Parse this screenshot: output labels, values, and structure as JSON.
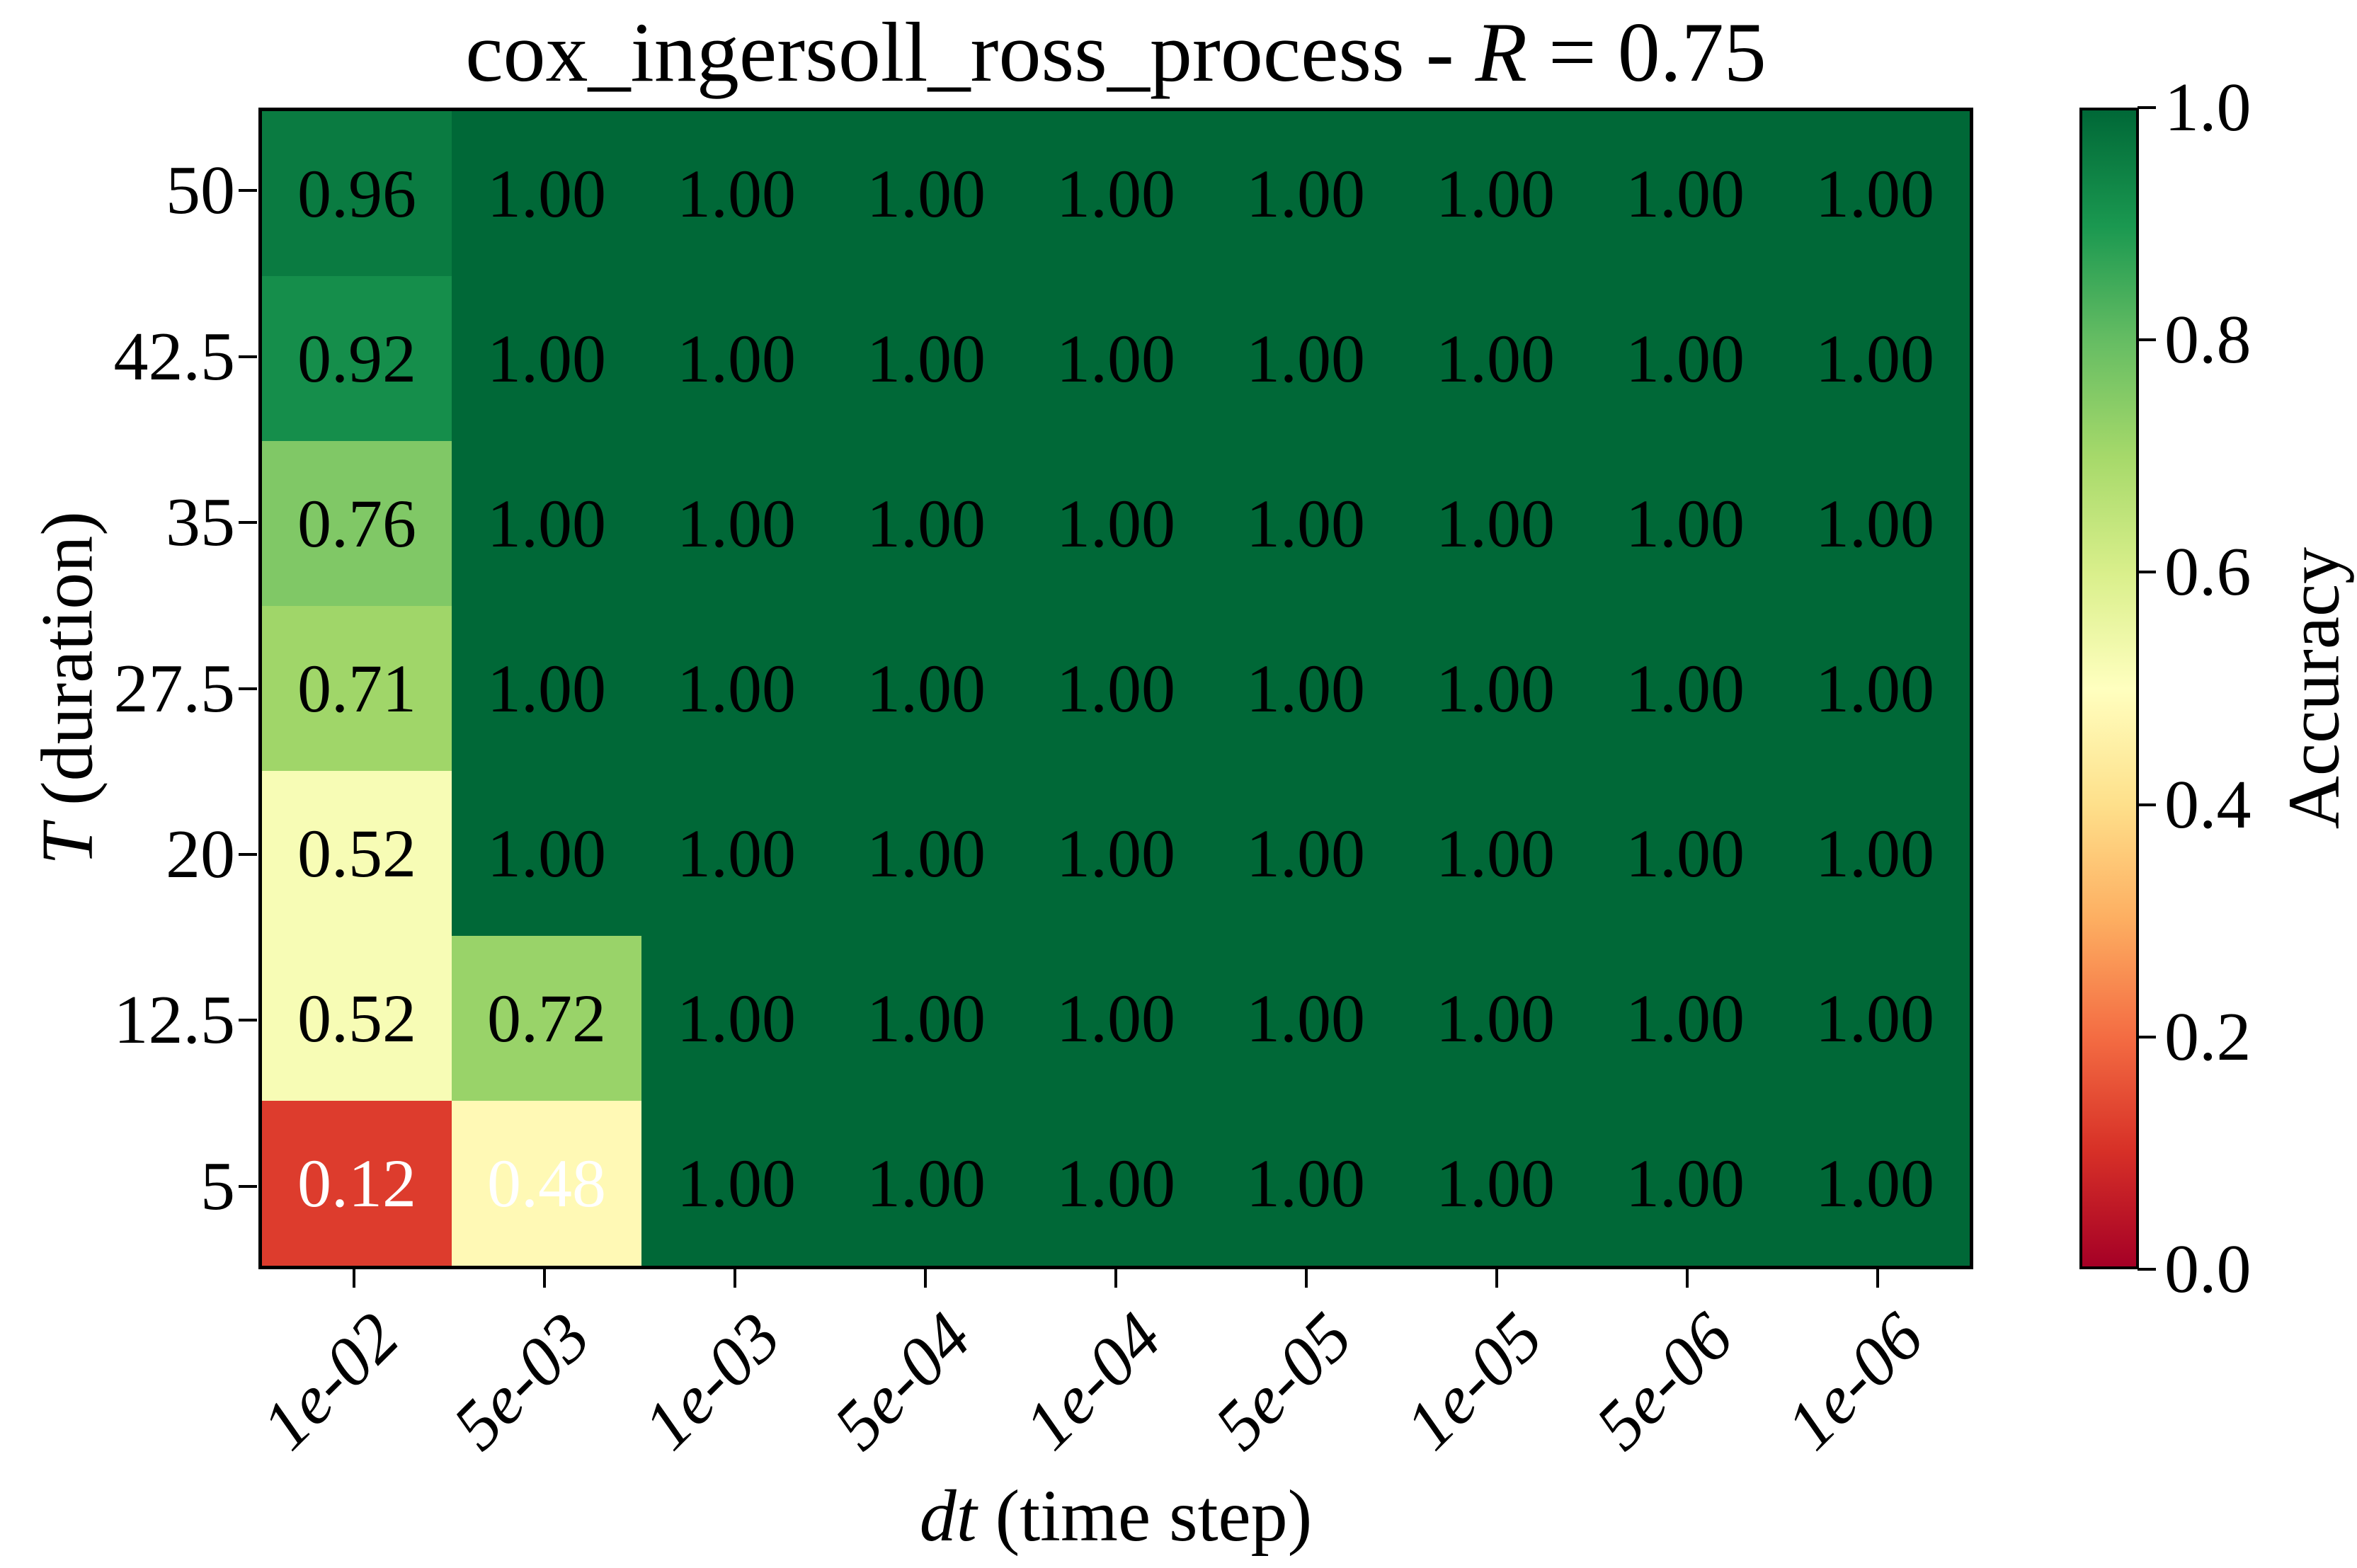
{
  "title": {
    "text_before_r": "cox_ingersoll_ross_process - ",
    "r_var": "R",
    "text_after_r": " = 0.75",
    "full": "cox_ingersoll_ross_process - R = 0.75"
  },
  "axes": {
    "x": {
      "label_var": "dt",
      "label_rest": " (time step)",
      "tick_labels": [
        "1e-02",
        "5e-03",
        "1e-03",
        "5e-04",
        "1e-04",
        "5e-05",
        "1e-05",
        "5e-06",
        "1e-06"
      ],
      "tick_rotation_deg": 45
    },
    "y": {
      "label_var": "T",
      "label_rest": " (duration)",
      "tick_labels": [
        "50",
        "42.5",
        "35",
        "27.5",
        "20",
        "12.5",
        "5"
      ]
    }
  },
  "colorbar": {
    "label": "Accuracy",
    "min": 0.0,
    "max": 1.0,
    "ticks": [
      {
        "value": 0.0,
        "label": "0.0"
      },
      {
        "value": 0.2,
        "label": "0.2"
      },
      {
        "value": 0.4,
        "label": "0.4"
      },
      {
        "value": 0.6,
        "label": "0.6"
      },
      {
        "value": 0.8,
        "label": "0.8"
      },
      {
        "value": 1.0,
        "label": "1.0"
      }
    ]
  },
  "chart_data": {
    "type": "heatmap",
    "title": "cox_ingersoll_ross_process - R = 0.75",
    "xlabel": "dt (time step)",
    "ylabel": "T (duration)",
    "x_categories": [
      "1e-02",
      "5e-03",
      "1e-03",
      "5e-04",
      "1e-04",
      "5e-05",
      "1e-05",
      "5e-06",
      "1e-06"
    ],
    "y_categories": [
      "50",
      "42.5",
      "35",
      "27.5",
      "20",
      "12.5",
      "5"
    ],
    "values": [
      [
        0.96,
        1.0,
        1.0,
        1.0,
        1.0,
        1.0,
        1.0,
        1.0,
        1.0
      ],
      [
        0.92,
        1.0,
        1.0,
        1.0,
        1.0,
        1.0,
        1.0,
        1.0,
        1.0
      ],
      [
        0.76,
        1.0,
        1.0,
        1.0,
        1.0,
        1.0,
        1.0,
        1.0,
        1.0
      ],
      [
        0.71,
        1.0,
        1.0,
        1.0,
        1.0,
        1.0,
        1.0,
        1.0,
        1.0
      ],
      [
        0.52,
        1.0,
        1.0,
        1.0,
        1.0,
        1.0,
        1.0,
        1.0,
        1.0
      ],
      [
        0.52,
        0.72,
        1.0,
        1.0,
        1.0,
        1.0,
        1.0,
        1.0,
        1.0
      ],
      [
        0.12,
        0.48,
        1.0,
        1.0,
        1.0,
        1.0,
        1.0,
        1.0,
        1.0
      ]
    ],
    "value_decimals": 2,
    "annot_white_below": 0.5,
    "annot_colors": {
      "light": "#ffffff",
      "dark": "#000000"
    },
    "grid": false,
    "legend_position": "right-colorbar",
    "colormap": {
      "name": "RdYlGn",
      "stops": [
        [
          0.0,
          "#a50026"
        ],
        [
          0.1,
          "#d73027"
        ],
        [
          0.2,
          "#f46d43"
        ],
        [
          0.3,
          "#fdae61"
        ],
        [
          0.4,
          "#fee08b"
        ],
        [
          0.5,
          "#ffffbf"
        ],
        [
          0.6,
          "#d9ef8b"
        ],
        [
          0.7,
          "#a6d96a"
        ],
        [
          0.8,
          "#66bd63"
        ],
        [
          0.9,
          "#1a9850"
        ],
        [
          1.0,
          "#006837"
        ]
      ]
    }
  }
}
